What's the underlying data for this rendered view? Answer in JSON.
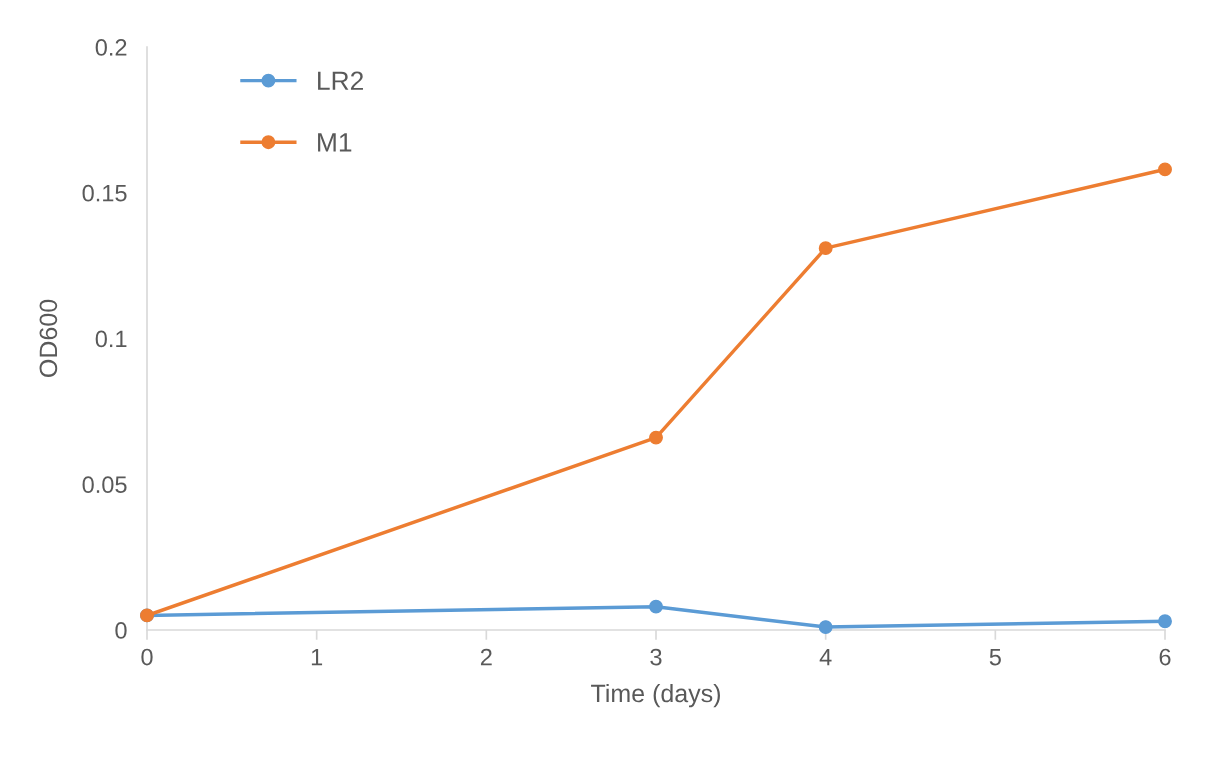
{
  "chart_data": {
    "type": "line",
    "xlabel": "Time (days)",
    "ylabel": "OD600",
    "x": [
      0,
      3,
      4,
      6
    ],
    "series": [
      {
        "name": "LR2",
        "color": "#5b9bd5",
        "values": [
          0.005,
          0.008,
          0.001,
          0.003
        ]
      },
      {
        "name": "M1",
        "color": "#ed7d31",
        "values": [
          0.005,
          0.066,
          0.131,
          0.158
        ]
      }
    ],
    "xlim": [
      0,
      6
    ],
    "xticks": [
      0,
      1,
      2,
      3,
      4,
      5,
      6
    ],
    "ylim": [
      0,
      0.2
    ],
    "yticks": [
      0,
      0.05,
      0.1,
      0.15,
      0.2
    ],
    "grid": false,
    "legend": "top left",
    "marker": "circle",
    "line_style": "solid"
  }
}
